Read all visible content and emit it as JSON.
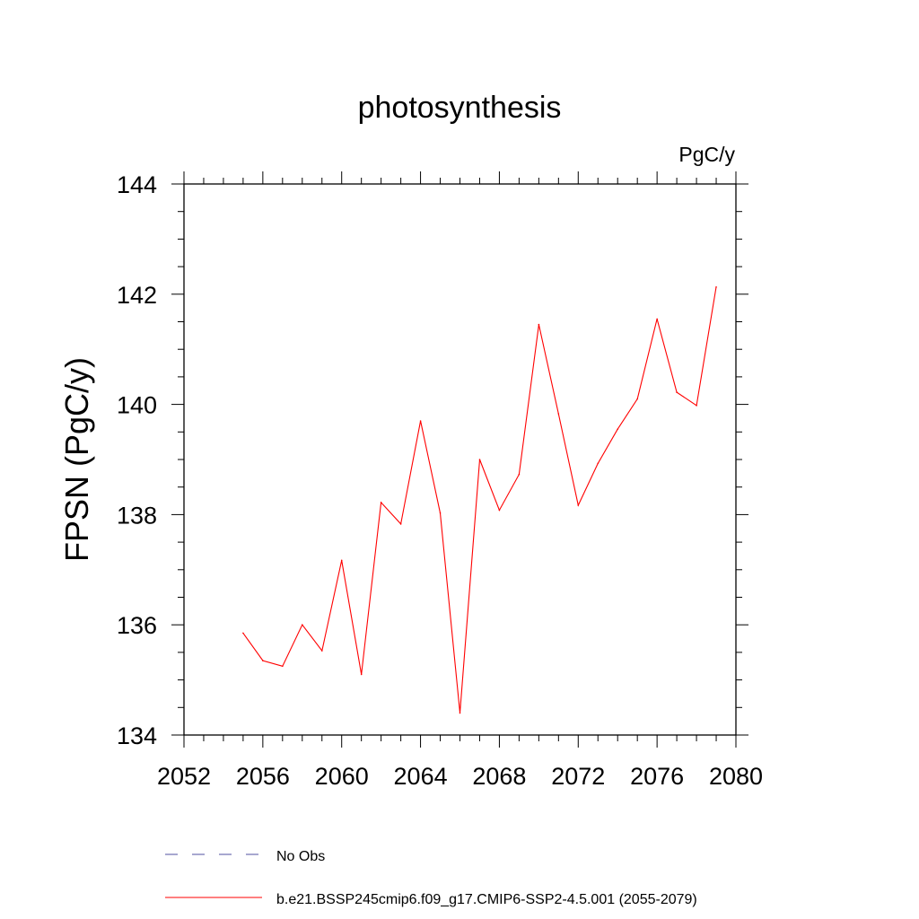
{
  "chart_data": {
    "type": "line",
    "title": "photosynthesis",
    "units_label": "PgC/y",
    "ylabel": "FPSN  (PgC/y)",
    "xlabel": "",
    "xlim": [
      2052,
      2080
    ],
    "ylim": [
      134,
      144
    ],
    "x_ticks": [
      2052,
      2056,
      2060,
      2064,
      2068,
      2072,
      2076,
      2080
    ],
    "y_ticks": [
      134,
      136,
      138,
      140,
      142,
      144
    ],
    "x": [
      2055,
      2056,
      2057,
      2058,
      2059,
      2060,
      2061,
      2062,
      2063,
      2064,
      2065,
      2066,
      2067,
      2068,
      2069,
      2070,
      2071,
      2072,
      2073,
      2074,
      2075,
      2076,
      2077,
      2078,
      2079
    ],
    "series": [
      {
        "name": "b.e21.BSSP245cmip6.f09_g17.CMIP6-SSP2-4.5.001 (2055-2079)",
        "color": "#ff0000",
        "style": "solid",
        "values": [
          135.85,
          135.35,
          135.25,
          136.0,
          135.53,
          137.17,
          135.1,
          138.22,
          137.83,
          139.7,
          138.03,
          134.4,
          139.0,
          138.08,
          138.73,
          141.45,
          139.83,
          138.17,
          138.93,
          139.55,
          140.1,
          141.55,
          140.22,
          139.98,
          142.13
        ]
      }
    ],
    "legend": [
      {
        "label": "No Obs",
        "color": "#5050a0",
        "style": "dashed"
      },
      {
        "label": "b.e21.BSSP245cmip6.f09_g17.CMIP6-SSP2-4.5.001 (2055-2079)",
        "color": "#ff0000",
        "style": "solid"
      }
    ],
    "legend_position": "bottom",
    "grid": false
  }
}
